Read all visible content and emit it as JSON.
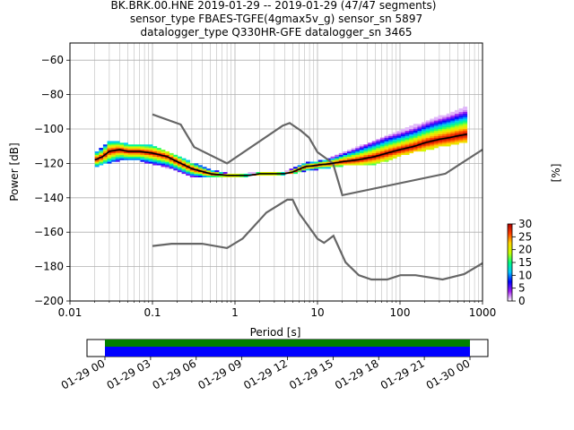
{
  "title": {
    "line1": "BK.BRK.00.HNE   2019-01-29 -- 2019-01-29  (47/47 segments)",
    "line2": "sensor_type FBAES-TGFE(4gmax5v_g) sensor_sn 5897",
    "line3": "datalogger_type Q330HR-GFE datalogger_sn 3465"
  },
  "colorbar": {
    "label": "[%]",
    "min": 0,
    "max": 30,
    "ticks": [
      "0",
      "5",
      "10",
      "15",
      "20",
      "25",
      "30"
    ],
    "stops": [
      "#ffffff",
      "#a020ef",
      "#0000ff",
      "#00c8ff",
      "#00ff80",
      "#c8ff00",
      "#ffd700",
      "#ff4000",
      "#b00000"
    ]
  },
  "chart_data": [
    {
      "type": "heatmap",
      "xscale": "log",
      "xlim": [
        0.01,
        1000
      ],
      "ylim": [
        -200,
        -50
      ],
      "xlabel": "Period [s]",
      "ylabel": "Power [dB]",
      "xticks": [
        0.01,
        0.1,
        1,
        10,
        100,
        1000
      ],
      "xtick_labels": [
        "0.01",
        "0.1",
        "1",
        "10",
        "100",
        "1000"
      ],
      "yticks": [
        -200,
        -180,
        -160,
        -140,
        -120,
        -100,
        -80,
        -60
      ],
      "ytick_labels": [
        "−200",
        "−180",
        "−160",
        "−140",
        "−120",
        "−100",
        "−80",
        "−60"
      ],
      "grid": true,
      "mode_line": {
        "color": "#000000",
        "x": [
          0.02,
          0.025,
          0.03,
          0.04,
          0.05,
          0.07,
          0.1,
          0.15,
          0.2,
          0.3,
          0.5,
          0.8,
          1,
          1.5,
          2,
          3,
          4,
          5,
          7,
          10,
          15,
          20,
          30,
          50,
          70,
          100,
          150,
          200,
          300,
          400,
          500,
          650
        ],
        "y": [
          -118,
          -116,
          -113,
          -112,
          -113,
          -113,
          -114,
          -116,
          -119,
          -123,
          -126,
          -127,
          -127,
          -127,
          -126,
          -126,
          -126,
          -125,
          -122,
          -121,
          -120,
          -119,
          -118,
          -116,
          -114,
          -112,
          -110,
          -108,
          -106,
          -105,
          -104,
          -103
        ]
      },
      "density_spread": {
        "x": [
          0.02,
          0.025,
          0.03,
          0.04,
          0.05,
          0.07,
          0.1,
          0.15,
          0.2,
          0.3,
          0.5,
          0.8,
          1,
          1.5,
          2,
          3,
          4,
          5,
          7,
          10,
          15,
          20,
          30,
          50,
          70,
          100,
          150,
          200,
          300,
          400,
          500,
          650
        ],
        "upper": [
          -114,
          -111,
          -107,
          -108,
          -109,
          -109,
          -110,
          -113,
          -116,
          -120,
          -124,
          -126,
          -126,
          -126,
          -125,
          -125,
          -125,
          -123,
          -120,
          -119,
          -117,
          -114,
          -111,
          -107,
          -104,
          -101,
          -98,
          -96,
          -93,
          -91,
          -89,
          -87
        ],
        "lower": [
          -122,
          -120,
          -119,
          -118,
          -118,
          -118,
          -120,
          -122,
          -124,
          -127,
          -128,
          -128,
          -128,
          -127,
          -127,
          -127,
          -126,
          -126,
          -124,
          -123,
          -122,
          -121,
          -121,
          -120,
          -118,
          -115,
          -113,
          -112,
          -110,
          -109,
          -108,
          -107
        ]
      },
      "noise_models": [
        {
          "name": "NHNM",
          "color": "#666666",
          "x": [
            0.1,
            0.22,
            0.32,
            0.8,
            3.8,
            4.6,
            6.3,
            7.9,
            10,
            15.4,
            20,
            354.8,
            1000
          ],
          "y": [
            -91.5,
            -97.4,
            -110.5,
            -120,
            -98,
            -96.5,
            -101,
            -105,
            -113.5,
            -120,
            -138.5,
            -126,
            -112
          ]
        },
        {
          "name": "NLNM",
          "color": "#666666",
          "x": [
            0.1,
            0.17,
            0.4,
            0.8,
            1.24,
            2.4,
            4.3,
            5,
            6,
            10,
            12,
            15.6,
            21.9,
            31.6,
            45,
            70,
            101,
            154,
            328,
            600,
            1000
          ],
          "y": [
            -168,
            -166.7,
            -166.7,
            -169.2,
            -163.7,
            -148.6,
            -141.1,
            -141.1,
            -149,
            -163.8,
            -166.2,
            -162.1,
            -177.5,
            -185,
            -187.5,
            -187.5,
            -185,
            -185,
            -187.5,
            -184.4,
            -178
          ]
        }
      ]
    },
    {
      "type": "timeline",
      "x_tick_labels": [
        "01-29 00",
        "01-29 03",
        "01-29 06",
        "01-29 09",
        "01-29 12",
        "01-29 15",
        "01-29 18",
        "01-29 21",
        "01-30 00"
      ],
      "segments": 47,
      "data_color": "#008000",
      "psd_color": "#0000ff",
      "coverage_start_hour": 0,
      "coverage_end_hour": 24
    }
  ]
}
